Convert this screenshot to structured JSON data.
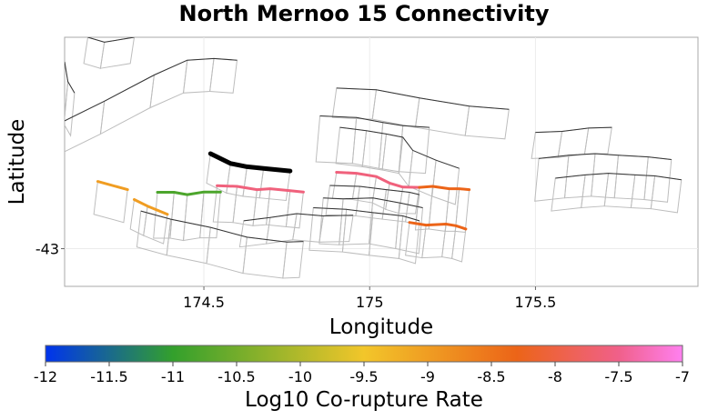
{
  "chart_data": {
    "type": "map",
    "title": "North Mernoo 15 Connectivity",
    "xlabel": "Longitude",
    "ylabel": "Latitude",
    "xlim": [
      174.08,
      175.99
    ],
    "ylim": [
      -43.115,
      -42.355
    ],
    "xticks": [
      174.5,
      175,
      175.5
    ],
    "xtick_labels": [
      "174.5",
      "175",
      "175.5"
    ],
    "yticks": [
      -43
    ],
    "ytick_labels": [
      "-43"
    ],
    "grid": true,
    "colorbar": {
      "label": "Log10 Co-rupture Rate",
      "min": -12,
      "max": -7,
      "ticks": [
        -12,
        -11.5,
        -11,
        -10.5,
        -10,
        -9.5,
        -9,
        -8.5,
        -8,
        -7.5,
        -7
      ],
      "tick_labels": [
        "-12",
        "-11.5",
        "-11",
        "-10.5",
        "-10",
        "-9.5",
        "-9",
        "-8.5",
        "-8",
        "-7.5",
        "-7"
      ],
      "stops": [
        {
          "value": -12,
          "color": "#0033ee"
        },
        {
          "value": -11,
          "color": "#33a02c"
        },
        {
          "value": -9.5,
          "color": "#f2c62a"
        },
        {
          "value": -8.3,
          "color": "#ec6418"
        },
        {
          "value": -7.5,
          "color": "#f0608a"
        },
        {
          "value": -7,
          "color": "#ff80f0"
        }
      ]
    },
    "source_section": {
      "name": "North Mernoo 15",
      "color": "#000000",
      "trace": [
        [
          174.52,
          -42.71
        ],
        [
          174.58,
          -42.74
        ],
        [
          174.63,
          -42.75
        ],
        [
          174.68,
          -42.755
        ],
        [
          174.76,
          -42.763
        ]
      ]
    },
    "colored_sections": [
      {
        "value": -9.0,
        "trace": [
          [
            174.18,
            -42.795
          ],
          [
            174.27,
            -42.82
          ]
        ]
      },
      {
        "value": -9.0,
        "trace": [
          [
            174.29,
            -42.85
          ],
          [
            174.33,
            -42.87
          ],
          [
            174.39,
            -42.895
          ]
        ]
      },
      {
        "value": -10.8,
        "trace": [
          [
            174.36,
            -42.828
          ],
          [
            174.41,
            -42.828
          ],
          [
            174.45,
            -42.835
          ],
          [
            174.5,
            -42.827
          ],
          [
            174.55,
            -42.827
          ]
        ]
      },
      {
        "value": -7.6,
        "trace": [
          [
            174.54,
            -42.808
          ],
          [
            174.6,
            -42.81
          ],
          [
            174.66,
            -42.82
          ],
          [
            174.7,
            -42.817
          ],
          [
            174.76,
            -42.823
          ],
          [
            174.8,
            -42.827
          ]
        ]
      },
      {
        "value": -7.6,
        "trace": [
          [
            174.9,
            -42.767
          ],
          [
            174.96,
            -42.77
          ],
          [
            175.02,
            -42.78
          ],
          [
            175.06,
            -42.8
          ],
          [
            175.1,
            -42.812
          ],
          [
            175.15,
            -42.813
          ]
        ]
      },
      {
        "value": -8.3,
        "trace": [
          [
            175.15,
            -42.813
          ],
          [
            175.19,
            -42.81
          ],
          [
            175.24,
            -42.817
          ],
          [
            175.27,
            -42.817
          ],
          [
            175.3,
            -42.82
          ]
        ]
      },
      {
        "value": -8.3,
        "trace": [
          [
            175.12,
            -42.92
          ],
          [
            175.17,
            -42.928
          ],
          [
            175.23,
            -42.925
          ],
          [
            175.26,
            -42.93
          ],
          [
            175.29,
            -42.94
          ]
        ]
      }
    ],
    "other_traces": [
      [
        [
          174.15,
          -42.355
        ],
        [
          174.2,
          -42.37
        ],
        [
          174.29,
          -42.355
        ]
      ],
      [
        [
          174.08,
          -42.43
        ],
        [
          174.09,
          -42.49
        ],
        [
          174.11,
          -42.525
        ]
      ],
      [
        [
          174.08,
          -42.61
        ],
        [
          174.2,
          -42.55
        ],
        [
          174.35,
          -42.47
        ],
        [
          174.45,
          -42.425
        ],
        [
          174.53,
          -42.42
        ],
        [
          174.6,
          -42.425
        ]
      ],
      [
        [
          174.9,
          -42.51
        ],
        [
          175.02,
          -42.515
        ],
        [
          175.15,
          -42.54
        ],
        [
          175.3,
          -42.565
        ],
        [
          175.42,
          -42.575
        ]
      ],
      [
        [
          174.85,
          -42.595
        ],
        [
          174.96,
          -42.6
        ],
        [
          175.04,
          -42.615
        ],
        [
          175.1,
          -42.625
        ],
        [
          175.18,
          -42.63
        ]
      ],
      [
        [
          174.91,
          -42.63
        ],
        [
          174.99,
          -42.64
        ],
        [
          175.05,
          -42.65
        ],
        [
          175.1,
          -42.66
        ],
        [
          175.13,
          -42.7
        ],
        [
          175.2,
          -42.73
        ],
        [
          175.27,
          -42.755
        ]
      ],
      [
        [
          175.5,
          -42.645
        ],
        [
          175.58,
          -42.642
        ],
        [
          175.66,
          -42.632
        ],
        [
          175.73,
          -42.63
        ]
      ],
      [
        [
          175.51,
          -42.725
        ],
        [
          175.6,
          -42.715
        ],
        [
          175.68,
          -42.71
        ],
        [
          175.75,
          -42.715
        ],
        [
          175.84,
          -42.72
        ],
        [
          175.91,
          -42.728
        ]
      ],
      [
        [
          175.56,
          -42.785
        ],
        [
          175.65,
          -42.775
        ],
        [
          175.72,
          -42.77
        ],
        [
          175.8,
          -42.775
        ],
        [
          175.86,
          -42.778
        ],
        [
          175.94,
          -42.79
        ]
      ],
      [
        [
          174.88,
          -42.807
        ],
        [
          174.97,
          -42.81
        ],
        [
          175.05,
          -42.82
        ],
        [
          175.12,
          -42.828
        ],
        [
          175.15,
          -42.835
        ]
      ],
      [
        [
          174.86,
          -42.845
        ],
        [
          174.92,
          -42.848
        ],
        [
          175.01,
          -42.845
        ],
        [
          175.09,
          -42.86
        ],
        [
          175.16,
          -42.875
        ]
      ],
      [
        [
          174.31,
          -42.885
        ],
        [
          174.4,
          -42.91
        ],
        [
          174.52,
          -42.935
        ],
        [
          174.63,
          -42.965
        ],
        [
          174.75,
          -42.98
        ],
        [
          174.8,
          -42.978
        ]
      ],
      [
        [
          174.62,
          -42.915
        ],
        [
          174.7,
          -42.905
        ],
        [
          174.78,
          -42.893
        ],
        [
          174.86,
          -42.9
        ],
        [
          174.95,
          -42.898
        ]
      ],
      [
        [
          174.83,
          -42.875
        ],
        [
          174.93,
          -42.88
        ],
        [
          175.01,
          -42.89
        ],
        [
          175.1,
          -42.9
        ],
        [
          175.15,
          -42.915
        ]
      ]
    ]
  }
}
